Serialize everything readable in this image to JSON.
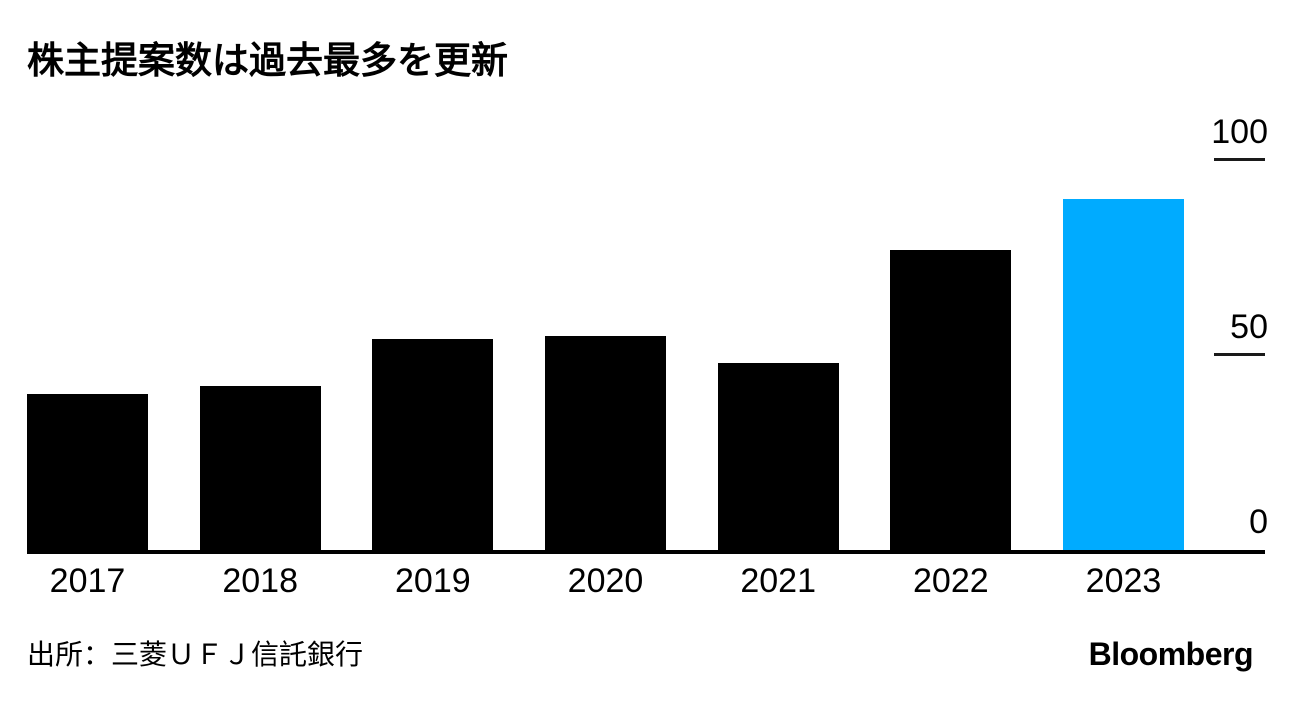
{
  "title": "株主提案数は過去最多を更新",
  "source": "出所：三菱ＵＦＪ信託銀行",
  "brand": "Bloomberg",
  "colors": {
    "background": "#FFFFFF",
    "bar": "#000000",
    "highlight": "#00ABFF",
    "axis": "#000000",
    "tick": "#1A1A1A",
    "text": "#000000"
  },
  "chart_data": {
    "type": "bar",
    "title": "株主提案数は過去最多を更新",
    "categories": [
      "2017",
      "2018",
      "2019",
      "2020",
      "2021",
      "2022",
      "2023"
    ],
    "values": [
      40,
      42,
      54,
      55,
      48,
      77,
      90
    ],
    "highlight_category": "2023",
    "highlight_index": 6,
    "xlabel": "",
    "ylabel": "",
    "ylim": [
      0,
      100
    ],
    "yticks": [
      0,
      50,
      100
    ],
    "ytick_side": "right",
    "grid": false,
    "legend": "none",
    "source_note": "出所：三菱ＵＦＪ信託銀行"
  }
}
